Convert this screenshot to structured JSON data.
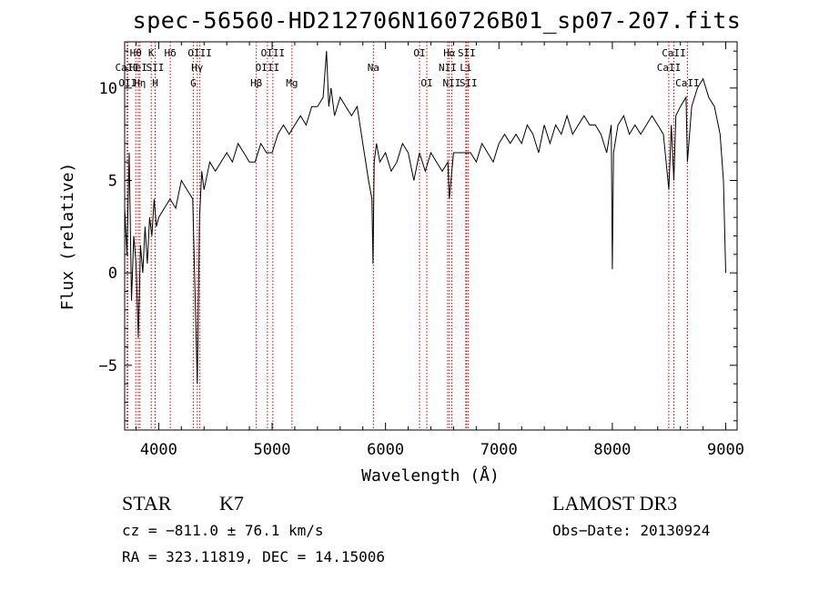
{
  "chart_data": {
    "type": "line",
    "title": "spec-56560-HD212706N160726B01_sp07-207.fits",
    "xlabel": "Wavelength (Å)",
    "ylabel": "Flux (relative)",
    "xlim": [
      3700,
      9100
    ],
    "ylim": [
      -8.5,
      12.5
    ],
    "x_ticks": [
      4000,
      5000,
      6000,
      7000,
      8000,
      9000
    ],
    "y_ticks": [
      -5,
      0,
      5,
      10
    ],
    "line_color": "#000000",
    "marker_color": "#cc0000",
    "series": [
      {
        "name": "flux",
        "x": [
          3700,
          3720,
          3740,
          3760,
          3780,
          3800,
          3820,
          3840,
          3860,
          3880,
          3900,
          3920,
          3940,
          3960,
          3980,
          4000,
          4050,
          4100,
          4150,
          4200,
          4250,
          4300,
          4320,
          4340,
          4360,
          4380,
          4400,
          4450,
          4500,
          4550,
          4600,
          4650,
          4700,
          4750,
          4800,
          4850,
          4900,
          4950,
          5000,
          5050,
          5100,
          5150,
          5200,
          5250,
          5300,
          5350,
          5400,
          5450,
          5480,
          5500,
          5520,
          5550,
          5600,
          5650,
          5700,
          5750,
          5800,
          5850,
          5880,
          5890,
          5900,
          5920,
          5950,
          6000,
          6050,
          6100,
          6150,
          6200,
          6250,
          6300,
          6350,
          6400,
          6450,
          6500,
          6550,
          6563,
          6600,
          6650,
          6700,
          6750,
          6800,
          6850,
          6900,
          6950,
          7000,
          7050,
          7100,
          7150,
          7200,
          7250,
          7300,
          7350,
          7400,
          7450,
          7500,
          7550,
          7600,
          7650,
          7700,
          7750,
          7800,
          7850,
          7900,
          7950,
          7990,
          8000,
          8010,
          8050,
          8100,
          8150,
          8200,
          8250,
          8300,
          8350,
          8400,
          8450,
          8498,
          8520,
          8542,
          8560,
          8600,
          8650,
          8662,
          8700,
          8750,
          8800,
          8850,
          8900,
          8950,
          8980,
          9000
        ],
        "y": [
          3.5,
          1.0,
          6.5,
          -1.5,
          2.0,
          0.5,
          -3.5,
          1.5,
          0.0,
          2.5,
          0.5,
          3.0,
          2.0,
          4.0,
          2.5,
          3.0,
          3.5,
          4.0,
          3.5,
          5.0,
          4.5,
          4.0,
          -1.0,
          -6.0,
          3.0,
          5.5,
          4.5,
          6.0,
          5.5,
          6.0,
          6.5,
          6.0,
          7.0,
          6.5,
          6.0,
          6.0,
          7.0,
          6.5,
          6.5,
          7.5,
          8.0,
          7.5,
          8.0,
          8.5,
          8.0,
          9.0,
          9.0,
          9.5,
          12.0,
          9.0,
          10.0,
          8.5,
          9.5,
          9.0,
          8.5,
          9.0,
          7.0,
          5.0,
          4.0,
          0.5,
          6.0,
          7.0,
          6.0,
          6.5,
          5.5,
          6.0,
          7.0,
          6.5,
          5.0,
          6.5,
          5.5,
          6.5,
          6.0,
          5.5,
          6.0,
          4.0,
          6.5,
          6.5,
          6.5,
          6.5,
          6.0,
          7.0,
          6.5,
          6.0,
          7.0,
          7.5,
          7.0,
          7.5,
          7.0,
          8.0,
          7.5,
          6.5,
          8.0,
          7.0,
          8.0,
          7.5,
          8.5,
          7.5,
          8.0,
          8.5,
          8.0,
          8.0,
          7.5,
          6.5,
          8.0,
          0.2,
          6.5,
          8.0,
          8.5,
          7.5,
          8.0,
          7.5,
          8.0,
          8.5,
          8.0,
          7.5,
          4.5,
          8.0,
          5.0,
          8.5,
          9.0,
          9.5,
          6.0,
          9.0,
          10.0,
          10.5,
          9.5,
          9.0,
          7.5,
          5.0,
          0.0
        ]
      }
    ],
    "line_markers": [
      {
        "label": "Hθ",
        "x": 3798,
        "row": 1
      },
      {
        "label": "CaII",
        "x": 3722,
        "row": 2
      },
      {
        "label": "OII",
        "x": 3727,
        "row": 3
      },
      {
        "label": "HeI",
        "x": 3820,
        "row": 2
      },
      {
        "label": "Hη",
        "x": 3835,
        "row": 3
      },
      {
        "label": "K",
        "x": 3934,
        "row": 1
      },
      {
        "label": "SII",
        "x": 3968,
        "row": 2
      },
      {
        "label": "H",
        "x": 3969,
        "row": 3
      },
      {
        "label": "Hδ",
        "x": 4102,
        "row": 1
      },
      {
        "label": "OIII",
        "x": 4363,
        "row": 1
      },
      {
        "label": "Hγ",
        "x": 4340,
        "row": 2
      },
      {
        "label": "G",
        "x": 4305,
        "row": 3
      },
      {
        "label": "OIII",
        "x": 5007,
        "row": 1
      },
      {
        "label": "OIII",
        "x": 4959,
        "row": 2
      },
      {
        "label": "Hβ",
        "x": 4861,
        "row": 3
      },
      {
        "label": "Mg",
        "x": 5175,
        "row": 3
      },
      {
        "label": "Na",
        "x": 5893,
        "row": 2
      },
      {
        "label": "OI",
        "x": 6300,
        "row": 1
      },
      {
        "label": "OI",
        "x": 6364,
        "row": 3
      },
      {
        "label": "Hα",
        "x": 6563,
        "row": 1
      },
      {
        "label": "SII",
        "x": 6716,
        "row": 1
      },
      {
        "label": "NII",
        "x": 6548,
        "row": 2
      },
      {
        "label": "Li",
        "x": 6708,
        "row": 2
      },
      {
        "label": "NII",
        "x": 6584,
        "row": 3
      },
      {
        "label": "SII",
        "x": 6731,
        "row": 3
      },
      {
        "label": "CaII",
        "x": 8542,
        "row": 1
      },
      {
        "label": "CaII",
        "x": 8498,
        "row": 2
      },
      {
        "label": "CaII",
        "x": 8662,
        "row": 3
      }
    ]
  },
  "info": {
    "class": "STAR",
    "subclass": "K7",
    "survey": "LAMOST DR3",
    "cz": "cz = −811.0 ± 76.1 km/s",
    "obs_date": "Obs−Date: 20130924",
    "radec": "RA = 323.11819, DEC =  14.15006"
  }
}
